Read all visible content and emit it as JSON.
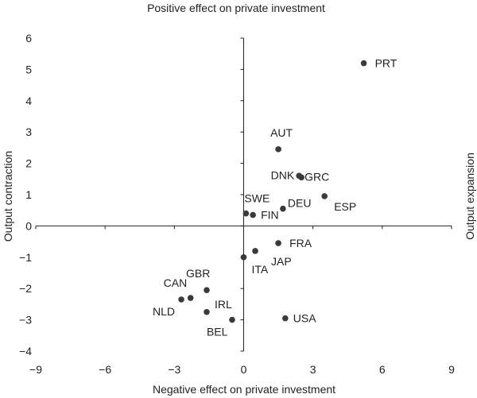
{
  "chart_data": {
    "type": "scatter",
    "title": "",
    "top_label": "Positive effect on private investment",
    "xlabel": "Negative effect on private investment",
    "ylabel_left": "Output contraction",
    "ylabel_right": "Output expansion",
    "xlim": [
      -9,
      9
    ],
    "ylim": [
      -4,
      6
    ],
    "xticks": [
      -9,
      -6,
      -3,
      0,
      3,
      6,
      9
    ],
    "yticks": [
      -4,
      -3,
      -2,
      -1,
      0,
      1,
      2,
      3,
      4,
      5,
      6
    ],
    "xtick_labels": [
      "−9",
      "−6",
      "−3",
      "0",
      "3",
      "6",
      "9"
    ],
    "ytick_labels": [
      "−4",
      "−3",
      "−2",
      "−1",
      "0",
      "1",
      "2",
      "3",
      "4",
      "5",
      "6"
    ],
    "grid": false,
    "marker_color": "#3a3a3a",
    "points": [
      {
        "label": "PRT",
        "x": 5.2,
        "y": 5.2
      },
      {
        "label": "AUT",
        "x": 1.5,
        "y": 2.45
      },
      {
        "label": "DNK",
        "x": 2.4,
        "y": 1.6
      },
      {
        "label": "GRC",
        "x": 2.5,
        "y": 1.55
      },
      {
        "label": "ESP",
        "x": 3.5,
        "y": 0.95
      },
      {
        "label": "SWE",
        "x": 0.1,
        "y": 0.4
      },
      {
        "label": "FIN",
        "x": 0.4,
        "y": 0.35
      },
      {
        "label": "DEU",
        "x": 1.7,
        "y": 0.55
      },
      {
        "label": "FRA",
        "x": 1.5,
        "y": -0.55
      },
      {
        "label": "JAP",
        "x": 0.5,
        "y": -0.8
      },
      {
        "label": "ITA",
        "x": 0.0,
        "y": -1.0
      },
      {
        "label": "GBR",
        "x": -1.6,
        "y": -2.05
      },
      {
        "label": "CAN",
        "x": -2.3,
        "y": -2.3
      },
      {
        "label": "NLD",
        "x": -2.7,
        "y": -2.35
      },
      {
        "label": "IRL",
        "x": -1.6,
        "y": -2.75
      },
      {
        "label": "BEL",
        "x": -0.5,
        "y": -3.0
      },
      {
        "label": "USA",
        "x": 1.8,
        "y": -2.95
      }
    ]
  }
}
